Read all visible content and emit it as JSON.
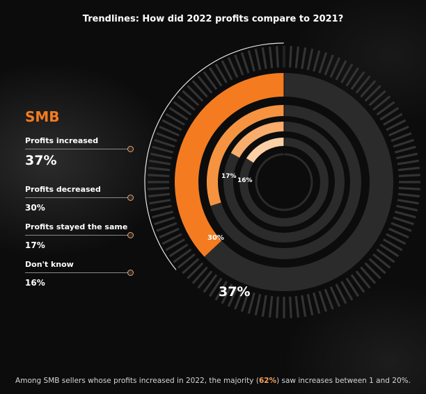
{
  "title": "Trendlines: How did 2022 profits compare to 2021?",
  "segment": "SMB",
  "colors": {
    "accent": "#f47b20",
    "track": "#2b2b2b",
    "tick": "#333333",
    "ring_fills": [
      "#f47b20",
      "#f69340",
      "#f8ad6c",
      "#fbd0a5"
    ]
  },
  "legend": [
    {
      "label": "Profits increased",
      "value": "37%"
    },
    {
      "label": "Profits decreased",
      "value": "30%"
    },
    {
      "label": "Profits stayed the same",
      "value": "17%"
    },
    {
      "label": "Don't know",
      "value": "16%"
    }
  ],
  "chart_data": {
    "type": "radial-bar",
    "categories": [
      "Profits increased",
      "Profits decreased",
      "Profits stayed the same",
      "Don't know"
    ],
    "values": [
      37,
      30,
      17,
      16
    ],
    "data_labels": [
      "37%",
      "30%",
      "17%",
      "16%"
    ],
    "unit": "%",
    "direction": "counter-clockwise from 12 o'clock",
    "grid": false,
    "legend_position": "left"
  },
  "footnote": {
    "before": "Among SMB sellers whose profits increased in 2022, the majority (",
    "highlight": "62%",
    "after": ") saw increases between 1 and 20%."
  }
}
